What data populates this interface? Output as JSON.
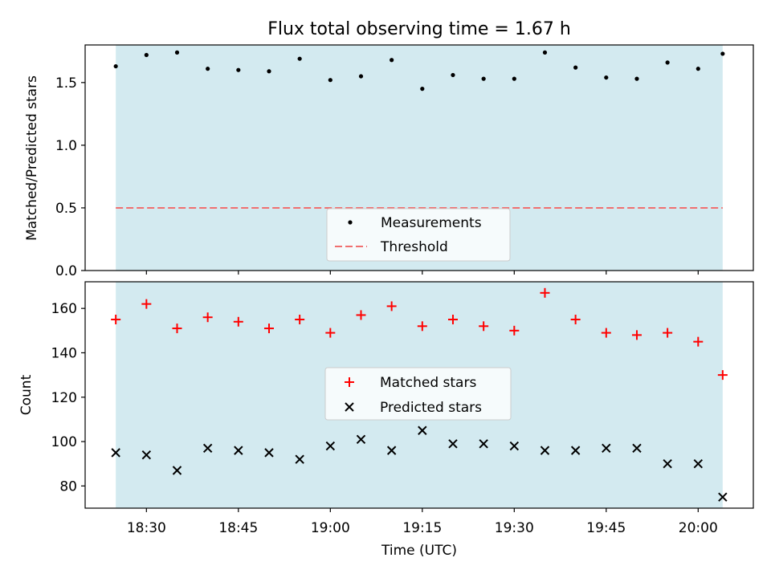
{
  "title": "Flux total observing time = 1.67 h",
  "colors": {
    "shade": "#d3eaf0",
    "measurement": "#000000",
    "threshold": "#f07070",
    "matched": "#ff0000",
    "predicted": "#000000"
  },
  "x_axis": {
    "label": "Time (UTC)",
    "range": [
      "18:20",
      "20:09"
    ],
    "ticks": [
      "18:30",
      "18:45",
      "19:00",
      "19:15",
      "19:30",
      "19:45",
      "20:00"
    ]
  },
  "chart_data": [
    {
      "type": "scatter",
      "ylabel": "Matched/Predicted stars",
      "ylim": [
        0,
        1.8
      ],
      "yticks": [
        "0.0",
        "0.5",
        "1.0",
        "1.5"
      ],
      "shaded_span": [
        "18:25",
        "20:04"
      ],
      "legend_position": "bottom-center",
      "threshold": {
        "name": "Threshold",
        "value": 0.5,
        "style": "dashed"
      },
      "series": [
        {
          "name": "Measurements",
          "marker": "dot",
          "x": [
            "18:25",
            "18:30",
            "18:35",
            "18:40",
            "18:45",
            "18:50",
            "18:55",
            "19:00",
            "19:05",
            "19:10",
            "19:15",
            "19:20",
            "19:25",
            "19:30",
            "19:35",
            "19:40",
            "19:45",
            "19:50",
            "19:55",
            "20:00",
            "20:04"
          ],
          "y": [
            1.63,
            1.72,
            1.74,
            1.61,
            1.6,
            1.59,
            1.69,
            1.52,
            1.55,
            1.68,
            1.45,
            1.56,
            1.53,
            1.53,
            1.74,
            1.62,
            1.54,
            1.53,
            1.66,
            1.61,
            1.73
          ]
        }
      ]
    },
    {
      "type": "scatter",
      "ylabel": "Count",
      "ylim": [
        70,
        172
      ],
      "yticks": [
        "80",
        "100",
        "120",
        "140",
        "160"
      ],
      "shaded_span": [
        "18:25",
        "20:04"
      ],
      "legend_position": "center",
      "series": [
        {
          "name": "Matched stars",
          "marker": "plus",
          "x": [
            "18:25",
            "18:30",
            "18:35",
            "18:40",
            "18:45",
            "18:50",
            "18:55",
            "19:00",
            "19:05",
            "19:10",
            "19:15",
            "19:20",
            "19:25",
            "19:30",
            "19:35",
            "19:40",
            "19:45",
            "19:50",
            "19:55",
            "20:00",
            "20:04"
          ],
          "y": [
            155,
            162,
            151,
            156,
            154,
            151,
            155,
            149,
            157,
            161,
            152,
            155,
            152,
            150,
            167,
            155,
            149,
            148,
            149,
            145,
            130
          ]
        },
        {
          "name": "Predicted stars",
          "marker": "x",
          "x": [
            "18:25",
            "18:30",
            "18:35",
            "18:40",
            "18:45",
            "18:50",
            "18:55",
            "19:00",
            "19:05",
            "19:10",
            "19:15",
            "19:20",
            "19:25",
            "19:30",
            "19:35",
            "19:40",
            "19:45",
            "19:50",
            "19:55",
            "20:00",
            "20:04"
          ],
          "y": [
            95,
            94,
            87,
            97,
            96,
            95,
            92,
            98,
            101,
            96,
            105,
            99,
            99,
            98,
            96,
            96,
            97,
            97,
            90,
            90,
            75
          ]
        }
      ]
    }
  ]
}
